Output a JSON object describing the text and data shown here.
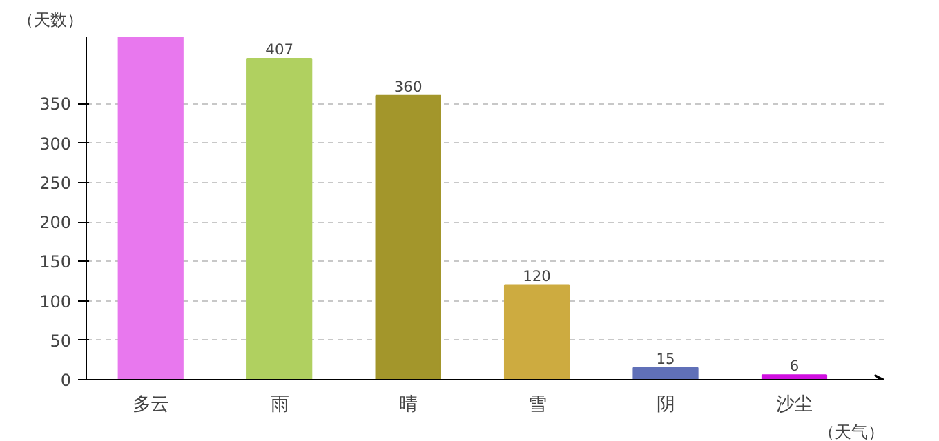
{
  "chart_data": {
    "type": "bar",
    "categories": [
      "多云",
      "雨",
      "晴",
      "雪",
      "阴",
      "沙尘"
    ],
    "values": [
      435,
      407,
      360,
      120,
      15,
      6
    ],
    "colors": [
      "#e878ee",
      "#b0d060",
      "#a3962b",
      "#cdab40",
      "#6070b8",
      "#d010e0"
    ],
    "value_labels": [
      null,
      "407",
      "360",
      "120",
      "15",
      "6"
    ],
    "ylim": [
      0,
      435
    ],
    "yticks": [
      0,
      50,
      100,
      150,
      200,
      250,
      300,
      350
    ],
    "ylabel": "（天数）",
    "xlabel": "（天气）",
    "grid": "y"
  }
}
